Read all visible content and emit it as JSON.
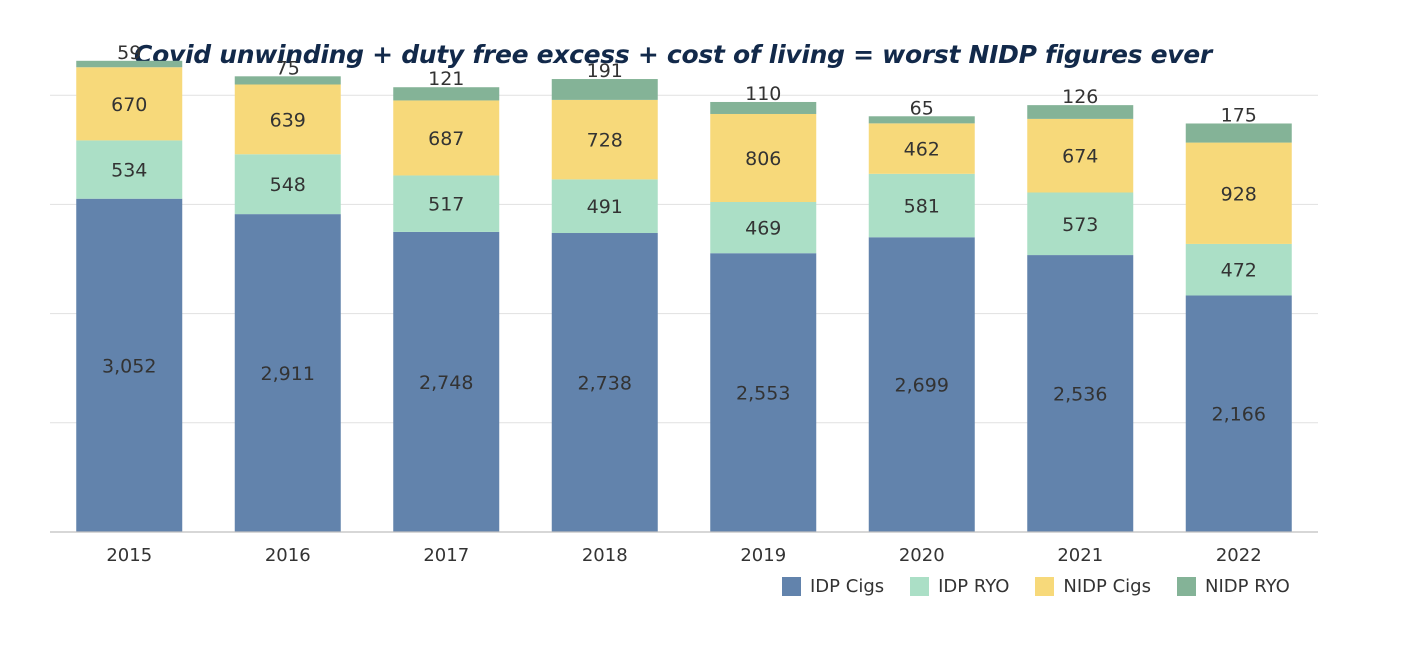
{
  "chart_data": {
    "type": "bar",
    "stacked": true,
    "title": "Covid unwinding + duty free excess + cost of living  = worst NIDP figures ever",
    "categories": [
      "2015",
      "2016",
      "2017",
      "2018",
      "2019",
      "2020",
      "2021",
      "2022"
    ],
    "series": [
      {
        "name": "IDP Cigs",
        "values": [
          3052,
          2911,
          2748,
          2738,
          2553,
          2699,
          2536,
          2166
        ],
        "labels": [
          "3,052",
          "2,911",
          "2,748",
          "2,738",
          "2,553",
          "2,699",
          "2,536",
          "2,166"
        ],
        "color": "#6283ac"
      },
      {
        "name": "IDP RYO",
        "values": [
          534,
          548,
          517,
          491,
          469,
          581,
          573,
          472
        ],
        "labels": [
          "534",
          "548",
          "517",
          "491",
          "469",
          "581",
          "573",
          "472"
        ],
        "color": "#abdfc6"
      },
      {
        "name": "NIDP Cigs",
        "values": [
          670,
          639,
          687,
          728,
          806,
          462,
          674,
          928
        ],
        "labels": [
          "670",
          "639",
          "687",
          "728",
          "806",
          "462",
          "674",
          "928"
        ],
        "color": "#f7d97a"
      },
      {
        "name": "NIDP RYO",
        "values": [
          59,
          75,
          121,
          191,
          110,
          65,
          126,
          175
        ],
        "labels": [
          "59",
          "75",
          "121",
          "191",
          "110",
          "65",
          "126",
          "175"
        ],
        "color": "#84b397"
      }
    ],
    "ylim": [
      0,
      5000
    ],
    "grid": true,
    "legend": "bottom-right"
  }
}
